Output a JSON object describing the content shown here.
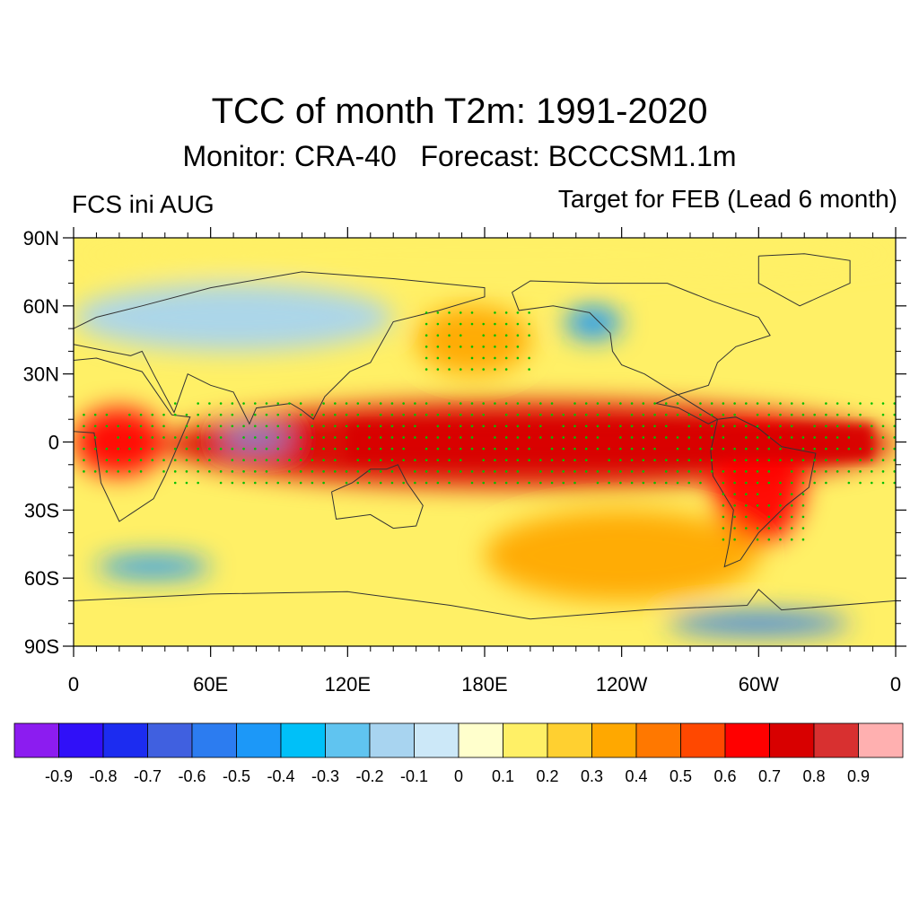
{
  "title": "TCC of month T2m: 1991-2020",
  "subtitle": "Monitor: CRA-40   Forecast: BCCCSM1.1m",
  "left_label": "FCS ini AUG",
  "right_label": "Target for FEB (Lead 6 month)",
  "map": {
    "lat_ticks": [
      "90N",
      "60N",
      "30N",
      "0",
      "30S",
      "60S",
      "90S"
    ],
    "lon_ticks": [
      "0",
      "60E",
      "120E",
      "180E",
      "120W",
      "60W",
      "0"
    ],
    "projection": "cylindrical equidistant",
    "lon_range": [
      0,
      360
    ],
    "lat_range": [
      -90,
      90
    ],
    "stippling_color": "#00c000"
  },
  "colorbar": {
    "colors": [
      "#8c1cf0",
      "#3010f8",
      "#1c2cf0",
      "#4060e0",
      "#2c7cf0",
      "#1c98f8",
      "#00c0f8",
      "#60c4f0",
      "#a8d4f0",
      "#cce8f8",
      "#ffffcc",
      "#fff066",
      "#ffd030",
      "#ffa800",
      "#ff7800",
      "#ff4800",
      "#ff0000",
      "#d80000",
      "#d83030",
      "#ffb0b0"
    ],
    "labels": [
      "-0.9",
      "-0.8",
      "-0.7",
      "-0.6",
      "-0.5",
      "-0.4",
      "-0.3",
      "-0.2",
      "-0.1",
      "0",
      "0.1",
      "0.2",
      "0.3",
      "0.4",
      "0.5",
      "0.6",
      "0.7",
      "0.8",
      "0.9"
    ]
  },
  "regions": [
    {
      "region": "tropical Pacific / Indian Ocean band",
      "lon": [
        40,
        360
      ],
      "lat": [
        -20,
        18
      ],
      "tcc": 0.7
    },
    {
      "region": "tropical Atlantic / Africa",
      "lon": [
        0,
        40
      ],
      "lat": [
        -15,
        15
      ],
      "tcc": 0.6
    },
    {
      "region": "South America",
      "lon": [
        280,
        320
      ],
      "lat": [
        -45,
        10
      ],
      "tcc": 0.65
    },
    {
      "region": "western Indian Ocean (negative)",
      "lon": [
        65,
        95
      ],
      "lat": [
        -2,
        5
      ],
      "tcc": -0.4
    },
    {
      "region": "Gulf of Alaska (negative)",
      "lon": [
        215,
        240
      ],
      "lat": [
        45,
        60
      ],
      "tcc": -0.5
    },
    {
      "region": "Southern Ocean south of Africa (negative)",
      "lon": [
        10,
        60
      ],
      "lat": [
        -60,
        -50
      ],
      "tcc": -0.5
    },
    {
      "region": "Antarctica near 60W (negative)",
      "lon": [
        260,
        340
      ],
      "lat": [
        -85,
        -75
      ],
      "tcc": -0.6
    },
    {
      "region": "Eurasia mid-latitudes",
      "lon": [
        0,
        140
      ],
      "lat": [
        40,
        70
      ],
      "tcc": -0.2
    },
    {
      "region": "North Pacific",
      "lon": [
        150,
        200
      ],
      "lat": [
        30,
        60
      ],
      "tcc": 0.4
    },
    {
      "region": "Arctic",
      "lon": [
        0,
        360
      ],
      "lat": [
        75,
        90
      ],
      "tcc": 0.2
    },
    {
      "region": "Southern Pacific",
      "lon": [
        180,
        300
      ],
      "lat": [
        -70,
        -30
      ],
      "tcc": 0.35
    }
  ]
}
